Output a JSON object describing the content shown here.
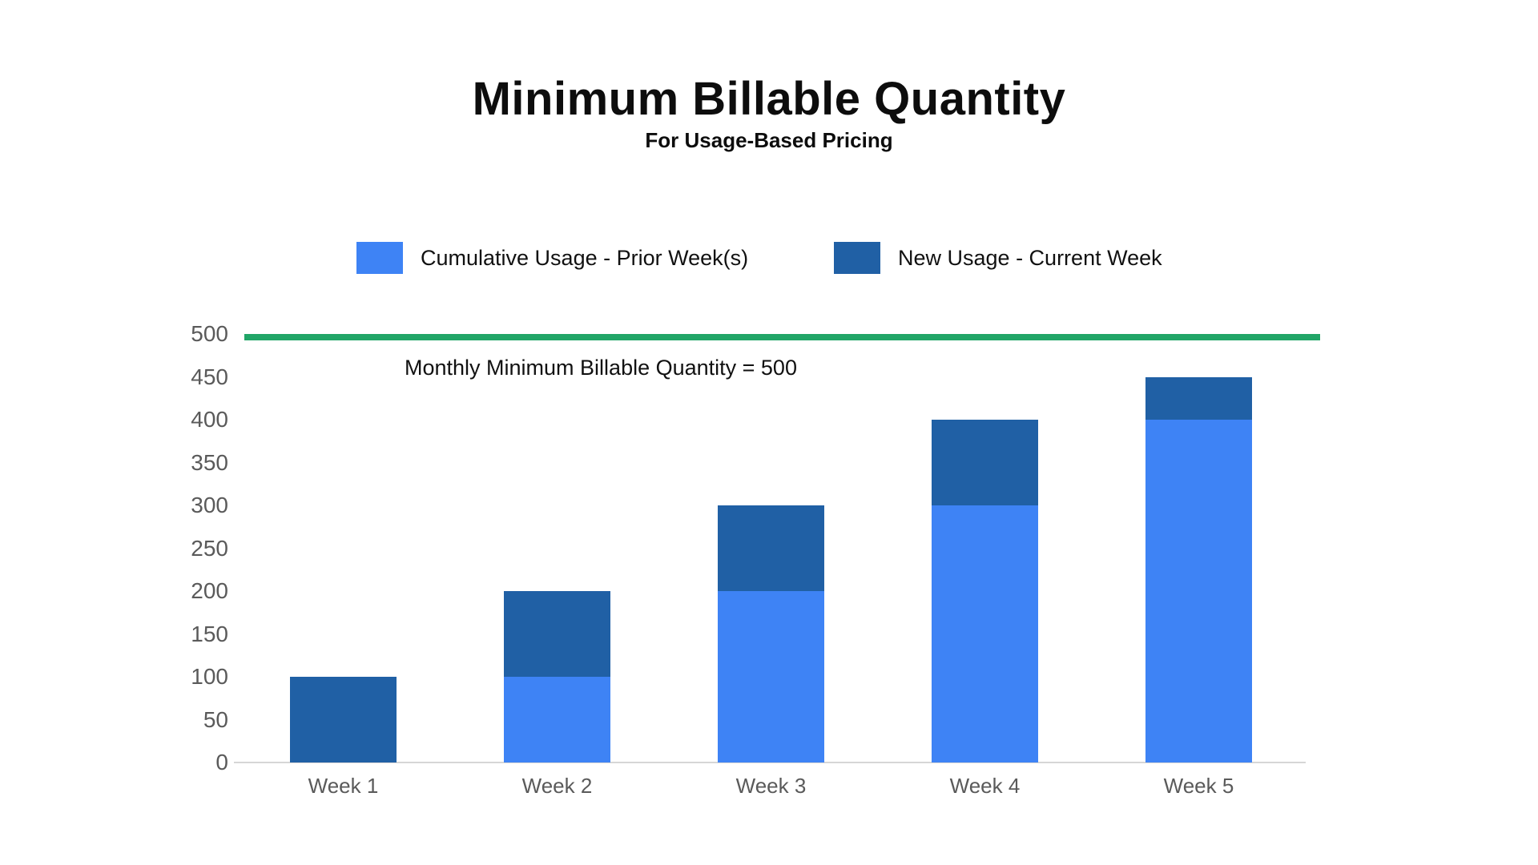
{
  "page": {
    "title": "Minimum Billable Quantity",
    "subtitle": "For Usage-Based Pricing",
    "background_color": "#ffffff"
  },
  "legend": {
    "items": [
      {
        "label": "Cumulative Usage - Prior Week(s)",
        "color": "#3E83F5"
      },
      {
        "label": "New Usage - Current Week",
        "color": "#2060A5"
      }
    ]
  },
  "threshold": {
    "label": "Monthly Minimum Billable Quantity = 500",
    "value": 500,
    "color": "#21A567"
  },
  "chart_data": {
    "type": "bar",
    "stacked": true,
    "title": "Minimum Billable Quantity",
    "subtitle": "For Usage-Based Pricing",
    "categories": [
      "Week 1",
      "Week 2",
      "Week 3",
      "Week 4",
      "Week 5"
    ],
    "series": [
      {
        "name": "Cumulative Usage - Prior Week(s)",
        "color": "#3E83F5",
        "values": [
          0,
          100,
          200,
          300,
          400
        ]
      },
      {
        "name": "New Usage - Current Week",
        "color": "#2060A5",
        "values": [
          100,
          100,
          100,
          100,
          50
        ]
      }
    ],
    "stack_totals": [
      100,
      200,
      300,
      400,
      450
    ],
    "xlabel": "",
    "ylabel": "",
    "ylim": [
      0,
      500
    ],
    "yticks": [
      0,
      50,
      100,
      150,
      200,
      250,
      300,
      350,
      400,
      450,
      500
    ],
    "grid": false,
    "legend_position": "top",
    "annotation": "Monthly Minimum Billable Quantity = 500",
    "threshold_line": {
      "value": 500,
      "color": "#21A567"
    },
    "colors": {
      "axis_text": "#5a5a5a",
      "axis_line": "#d6d6d6"
    }
  }
}
